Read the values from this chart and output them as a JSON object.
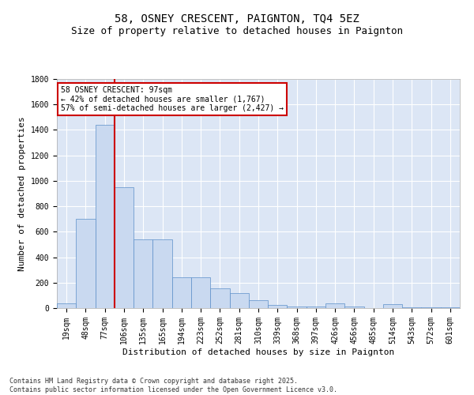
{
  "title1": "58, OSNEY CRESCENT, PAIGNTON, TQ4 5EZ",
  "title2": "Size of property relative to detached houses in Paignton",
  "xlabel": "Distribution of detached houses by size in Paignton",
  "ylabel": "Number of detached properties",
  "categories": [
    "19sqm",
    "48sqm",
    "77sqm",
    "106sqm",
    "135sqm",
    "165sqm",
    "194sqm",
    "223sqm",
    "252sqm",
    "281sqm",
    "310sqm",
    "339sqm",
    "368sqm",
    "397sqm",
    "426sqm",
    "456sqm",
    "485sqm",
    "514sqm",
    "543sqm",
    "572sqm",
    "601sqm"
  ],
  "values": [
    35,
    700,
    1440,
    950,
    540,
    540,
    245,
    245,
    155,
    120,
    60,
    25,
    10,
    10,
    40,
    15,
    0,
    30,
    5,
    5,
    5
  ],
  "bar_color": "#c9d9f0",
  "bar_edge_color": "#5b8fc9",
  "vline_x_index": 2.5,
  "vline_color": "#cc0000",
  "ylim": [
    0,
    1800
  ],
  "yticks": [
    0,
    200,
    400,
    600,
    800,
    1000,
    1200,
    1400,
    1600,
    1800
  ],
  "annotation_box_text": "58 OSNEY CRESCENT: 97sqm\n← 42% of detached houses are smaller (1,767)\n57% of semi-detached houses are larger (2,427) →",
  "annotation_box_color": "#cc0000",
  "footer_text": "Contains HM Land Registry data © Crown copyright and database right 2025.\nContains public sector information licensed under the Open Government Licence v3.0.",
  "bg_color": "#ffffff",
  "plot_bg_color": "#dce6f5",
  "grid_color": "#ffffff",
  "title_fontsize": 10,
  "subtitle_fontsize": 9,
  "tick_fontsize": 7,
  "ylabel_fontsize": 8,
  "xlabel_fontsize": 8,
  "annotation_fontsize": 7,
  "footer_fontsize": 6
}
